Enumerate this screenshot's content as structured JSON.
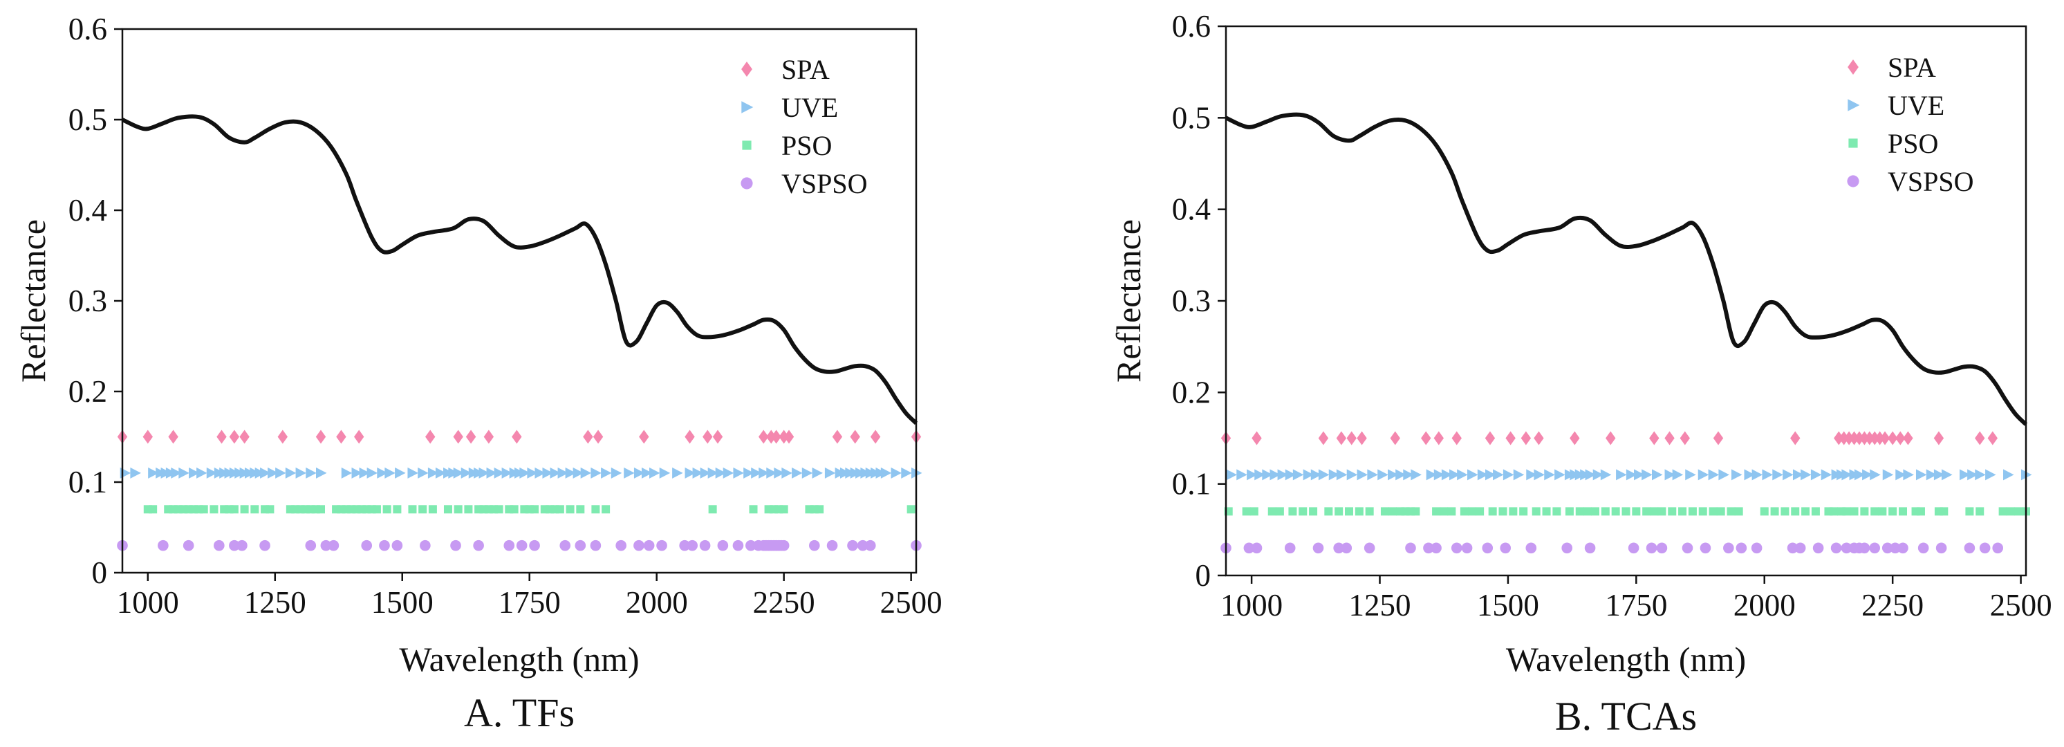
{
  "chart_data": [
    {
      "type": "line",
      "caption": "A. TFs",
      "xlabel": "Wavelength (nm)",
      "ylabel": "Reflectance",
      "xlim": [
        950,
        2510
      ],
      "ylim": [
        0,
        0.6
      ],
      "xticks": [
        1000,
        1250,
        1500,
        1750,
        2000,
        2250,
        2500
      ],
      "yticks": [
        0,
        0.1,
        0.2,
        0.3,
        0.4,
        0.5,
        0.6
      ],
      "ytick_labels": [
        "0",
        "0.1",
        "0.2",
        "0.3",
        "0.4",
        "0.5",
        "0.6"
      ],
      "spectrum": {
        "x": [
          950,
          980,
          1000,
          1030,
          1060,
          1100,
          1130,
          1160,
          1190,
          1210,
          1240,
          1270,
          1300,
          1330,
          1360,
          1390,
          1410,
          1440,
          1460,
          1480,
          1500,
          1530,
          1560,
          1600,
          1630,
          1660,
          1690,
          1720,
          1750,
          1780,
          1810,
          1840,
          1860,
          1880,
          1900,
          1920,
          1940,
          1960,
          1980,
          2000,
          2020,
          2040,
          2060,
          2080,
          2100,
          2130,
          2160,
          2190,
          2210,
          2230,
          2250,
          2270,
          2290,
          2310,
          2330,
          2350,
          2370,
          2390,
          2410,
          2430,
          2450,
          2470,
          2490,
          2510
        ],
        "y": [
          0.5,
          0.492,
          0.49,
          0.496,
          0.502,
          0.503,
          0.495,
          0.48,
          0.475,
          0.48,
          0.49,
          0.497,
          0.497,
          0.488,
          0.47,
          0.44,
          0.41,
          0.37,
          0.355,
          0.355,
          0.362,
          0.372,
          0.376,
          0.38,
          0.39,
          0.388,
          0.372,
          0.36,
          0.36,
          0.365,
          0.372,
          0.38,
          0.385,
          0.37,
          0.34,
          0.3,
          0.255,
          0.255,
          0.275,
          0.295,
          0.298,
          0.288,
          0.272,
          0.262,
          0.26,
          0.262,
          0.267,
          0.274,
          0.279,
          0.278,
          0.268,
          0.25,
          0.236,
          0.226,
          0.222,
          0.222,
          0.225,
          0.228,
          0.228,
          0.223,
          0.21,
          0.192,
          0.176,
          0.165
        ]
      },
      "series": [
        {
          "name": "SPA",
          "marker": "diamond",
          "color": "#f487ae",
          "y": 0.15,
          "x": [
            950,
            1000,
            1050,
            1145,
            1170,
            1190,
            1265,
            1340,
            1380,
            1415,
            1555,
            1610,
            1635,
            1670,
            1725,
            1865,
            1885,
            1975,
            2065,
            2100,
            2120,
            2210,
            2225,
            2235,
            2250,
            2260,
            2355,
            2390,
            2430,
            2510
          ]
        },
        {
          "name": "UVE",
          "marker": "triangle-right",
          "color": "#8fc5f0",
          "y": 0.11,
          "x": [
            955,
            975,
            1010,
            1025,
            1035,
            1045,
            1055,
            1070,
            1090,
            1105,
            1125,
            1140,
            1150,
            1160,
            1170,
            1180,
            1190,
            1200,
            1210,
            1220,
            1230,
            1245,
            1260,
            1280,
            1300,
            1320,
            1340,
            1390,
            1410,
            1425,
            1440,
            1460,
            1475,
            1495,
            1520,
            1540,
            1560,
            1575,
            1590,
            1600,
            1610,
            1625,
            1640,
            1650,
            1660,
            1675,
            1690,
            1705,
            1720,
            1730,
            1740,
            1755,
            1770,
            1785,
            1800,
            1815,
            1830,
            1845,
            1860,
            1880,
            1900,
            1920,
            1945,
            1965,
            1980,
            1995,
            2015,
            2040,
            2065,
            2080,
            2095,
            2110,
            2125,
            2140,
            2160,
            2180,
            2195,
            2210,
            2225,
            2240,
            2255,
            2275,
            2295,
            2315,
            2340,
            2360,
            2370,
            2380,
            2390,
            2400,
            2410,
            2420,
            2430,
            2440,
            2450,
            2470,
            2490,
            2510
          ]
        },
        {
          "name": "PSO",
          "marker": "square",
          "color": "#7eeab0",
          "y": 0.07,
          "x": [
            1000,
            1010,
            1040,
            1050,
            1060,
            1070,
            1080,
            1090,
            1100,
            1110,
            1130,
            1150,
            1160,
            1170,
            1190,
            1210,
            1230,
            1240,
            1280,
            1290,
            1300,
            1310,
            1320,
            1330,
            1340,
            1370,
            1380,
            1390,
            1400,
            1410,
            1420,
            1430,
            1440,
            1450,
            1470,
            1490,
            1520,
            1540,
            1560,
            1590,
            1610,
            1630,
            1650,
            1660,
            1670,
            1680,
            1690,
            1710,
            1720,
            1740,
            1750,
            1760,
            1780,
            1790,
            1800,
            1810,
            1830,
            1850,
            1880,
            1900,
            2110,
            2190,
            2220,
            2230,
            2240,
            2250,
            2300,
            2310,
            2320,
            2500
          ]
        },
        {
          "name": "VSPSO",
          "marker": "circle",
          "color": "#c79af2",
          "y": 0.03,
          "x": [
            950,
            1030,
            1080,
            1140,
            1170,
            1185,
            1230,
            1320,
            1350,
            1365,
            1430,
            1465,
            1490,
            1545,
            1605,
            1650,
            1710,
            1735,
            1760,
            1820,
            1850,
            1880,
            1930,
            1965,
            1985,
            2010,
            2055,
            2070,
            2095,
            2130,
            2160,
            2185,
            2200,
            2210,
            2215,
            2220,
            2225,
            2230,
            2235,
            2240,
            2245,
            2250,
            2310,
            2345,
            2385,
            2405,
            2420,
            2510
          ]
        }
      ]
    },
    {
      "type": "line",
      "caption": "B. TCAs",
      "xlabel": "Wavelength (nm)",
      "ylabel": "Reflectance",
      "xlim": [
        950,
        2510
      ],
      "ylim": [
        0,
        0.6
      ],
      "xticks": [
        1000,
        1250,
        1500,
        1750,
        2000,
        2250,
        2500
      ],
      "yticks": [
        0,
        0.1,
        0.2,
        0.3,
        0.4,
        0.5,
        0.6
      ],
      "ytick_labels": [
        "0",
        "0.1",
        "0.2",
        "0.3",
        "0.4",
        "0.5",
        "0.6"
      ],
      "spectrum": {
        "x": [
          950,
          980,
          1000,
          1030,
          1060,
          1100,
          1130,
          1160,
          1190,
          1210,
          1240,
          1270,
          1300,
          1330,
          1360,
          1390,
          1410,
          1440,
          1460,
          1480,
          1500,
          1530,
          1560,
          1600,
          1630,
          1660,
          1690,
          1720,
          1750,
          1780,
          1810,
          1840,
          1860,
          1880,
          1900,
          1920,
          1940,
          1960,
          1980,
          2000,
          2020,
          2040,
          2060,
          2080,
          2100,
          2130,
          2160,
          2190,
          2210,
          2230,
          2250,
          2270,
          2290,
          2310,
          2330,
          2350,
          2370,
          2390,
          2410,
          2430,
          2450,
          2470,
          2490,
          2510
        ],
        "y": [
          0.5,
          0.492,
          0.49,
          0.496,
          0.502,
          0.503,
          0.495,
          0.48,
          0.475,
          0.48,
          0.49,
          0.497,
          0.497,
          0.488,
          0.47,
          0.44,
          0.41,
          0.37,
          0.355,
          0.355,
          0.362,
          0.372,
          0.376,
          0.38,
          0.39,
          0.388,
          0.372,
          0.36,
          0.36,
          0.365,
          0.372,
          0.38,
          0.385,
          0.37,
          0.34,
          0.3,
          0.255,
          0.255,
          0.275,
          0.295,
          0.298,
          0.288,
          0.272,
          0.262,
          0.26,
          0.262,
          0.267,
          0.274,
          0.279,
          0.278,
          0.268,
          0.25,
          0.236,
          0.226,
          0.222,
          0.222,
          0.225,
          0.228,
          0.228,
          0.223,
          0.21,
          0.192,
          0.176,
          0.165
        ]
      },
      "series": [
        {
          "name": "SPA",
          "marker": "diamond",
          "color": "#f487ae",
          "y": 0.15,
          "x": [
            950,
            1010,
            1140,
            1175,
            1195,
            1215,
            1280,
            1340,
            1365,
            1400,
            1465,
            1505,
            1535,
            1560,
            1630,
            1700,
            1785,
            1815,
            1845,
            1910,
            2060,
            2145,
            2155,
            2165,
            2175,
            2185,
            2195,
            2205,
            2215,
            2225,
            2235,
            2250,
            2265,
            2280,
            2340,
            2420,
            2445
          ]
        },
        {
          "name": "UVE",
          "marker": "triangle-right",
          "color": "#8fc5f0",
          "y": 0.11,
          "x": [
            960,
            980,
            1000,
            1015,
            1030,
            1045,
            1060,
            1075,
            1090,
            1110,
            1125,
            1140,
            1160,
            1175,
            1195,
            1215,
            1235,
            1255,
            1275,
            1290,
            1305,
            1320,
            1350,
            1365,
            1380,
            1395,
            1410,
            1430,
            1450,
            1465,
            1480,
            1500,
            1520,
            1545,
            1560,
            1580,
            1600,
            1620,
            1630,
            1640,
            1650,
            1660,
            1675,
            1690,
            1720,
            1740,
            1755,
            1770,
            1790,
            1815,
            1830,
            1855,
            1880,
            1900,
            1920,
            1945,
            1970,
            1985,
            2005,
            2025,
            2045,
            2065,
            2080,
            2100,
            2120,
            2140,
            2150,
            2160,
            2175,
            2185,
            2200,
            2215,
            2240,
            2265,
            2280,
            2305,
            2325,
            2340,
            2355,
            2390,
            2405,
            2420,
            2440,
            2475,
            2510
          ]
        },
        {
          "name": "PSO",
          "marker": "square",
          "color": "#7eeab0",
          "y": 0.07,
          "x": [
            955,
            990,
            1005,
            1040,
            1055,
            1080,
            1100,
            1120,
            1150,
            1170,
            1190,
            1210,
            1230,
            1260,
            1275,
            1290,
            1300,
            1310,
            1320,
            1360,
            1375,
            1390,
            1415,
            1430,
            1445,
            1470,
            1490,
            1510,
            1530,
            1555,
            1575,
            1595,
            1620,
            1640,
            1655,
            1670,
            1690,
            1710,
            1730,
            1750,
            1770,
            1785,
            1800,
            1820,
            1840,
            1860,
            1880,
            1900,
            1915,
            1935,
            1950,
            2000,
            2020,
            2040,
            2060,
            2080,
            2100,
            2125,
            2135,
            2150,
            2160,
            2175,
            2195,
            2215,
            2230,
            2250,
            2270,
            2295,
            2305,
            2340,
            2350,
            2400,
            2420,
            2465,
            2480,
            2495,
            2510
          ]
        },
        {
          "name": "VSPSO",
          "marker": "circle",
          "color": "#c79af2",
          "y": 0.03,
          "x": [
            950,
            995,
            1010,
            1075,
            1130,
            1170,
            1185,
            1230,
            1310,
            1345,
            1360,
            1400,
            1420,
            1460,
            1495,
            1545,
            1615,
            1660,
            1745,
            1780,
            1800,
            1850,
            1885,
            1930,
            1955,
            1985,
            2055,
            2070,
            2105,
            2140,
            2160,
            2175,
            2185,
            2195,
            2215,
            2240,
            2255,
            2270,
            2310,
            2345,
            2400,
            2430,
            2455
          ]
        }
      ]
    }
  ]
}
